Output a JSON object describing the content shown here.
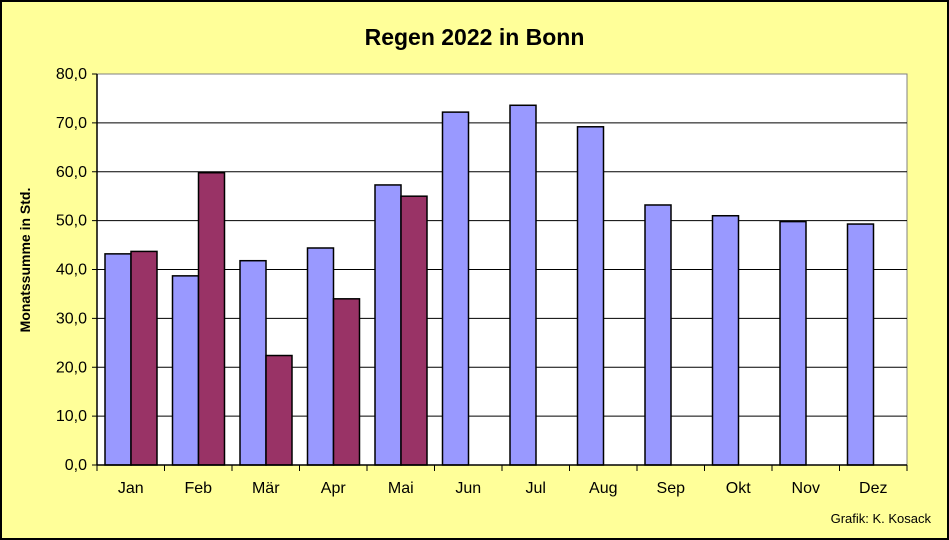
{
  "chart_data": {
    "type": "bar",
    "title": "Regen 2022 in Bonn",
    "ylabel": "Monatssumme in Std.",
    "xlabel": "",
    "categories": [
      "Jan",
      "Feb",
      "Mär",
      "Apr",
      "Mai",
      "Jun",
      "Jul",
      "Aug",
      "Sep",
      "Okt",
      "Nov",
      "Dez"
    ],
    "series": [
      {
        "values": [
          43.2,
          38.7,
          41.8,
          44.4,
          57.3,
          72.2,
          73.6,
          69.2,
          53.2,
          51.0,
          49.8,
          49.3
        ],
        "color": "#9999ff"
      },
      {
        "values": [
          43.7,
          59.8,
          22.4,
          34.0,
          55.0,
          null,
          null,
          null,
          null,
          null,
          null,
          null
        ],
        "color": "#993366"
      }
    ],
    "ylim": [
      0,
      80
    ],
    "yticks": [
      "0,0",
      "10,0",
      "20,0",
      "30,0",
      "40,0",
      "50,0",
      "60,0",
      "70,0",
      "80,0"
    ],
    "grid": true,
    "plot_background": "#ffffff",
    "page_background": "#ffff99"
  },
  "credit": "Grafik:  K. Kosack"
}
